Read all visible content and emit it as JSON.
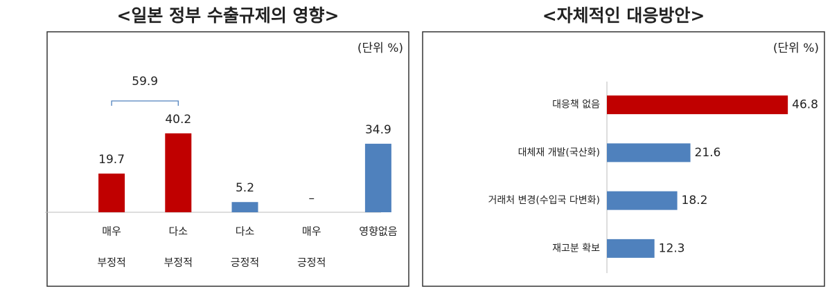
{
  "chart_data": [
    {
      "type": "bar",
      "title": "<일본 정부 수출규제의 영향>",
      "unit": "(단위 %)",
      "categories": [
        [
          "매우",
          "부정적"
        ],
        [
          "다소",
          "부정적"
        ],
        [
          "다소",
          "긍정적"
        ],
        [
          "매우",
          "긍정적"
        ],
        [
          "영향없음"
        ]
      ],
      "values": [
        19.7,
        40.2,
        5.2,
        null,
        34.9
      ],
      "value_labels": [
        "19.7",
        "40.2",
        "5.2",
        "–",
        "34.9"
      ],
      "colors": [
        "#c00000",
        "#c00000",
        "#4f81bd",
        "#4f81bd",
        "#4f81bd"
      ],
      "bracket": {
        "text": "59.9",
        "span": [
          0,
          1
        ]
      },
      "ylim": [
        0,
        50
      ]
    },
    {
      "type": "hbar",
      "title": "<자체적인 대응방안>",
      "unit": "(단위 %)",
      "categories": [
        "대응책 없음",
        "대체재 개발(국산화)",
        "거래처 변경(수입국 다변화)",
        "재고분 확보"
      ],
      "values": [
        46.8,
        21.6,
        18.2,
        12.3
      ],
      "colors": [
        "#c00000",
        "#4f81bd",
        "#4f81bd",
        "#4f81bd"
      ],
      "xlim": [
        0,
        50
      ]
    }
  ]
}
